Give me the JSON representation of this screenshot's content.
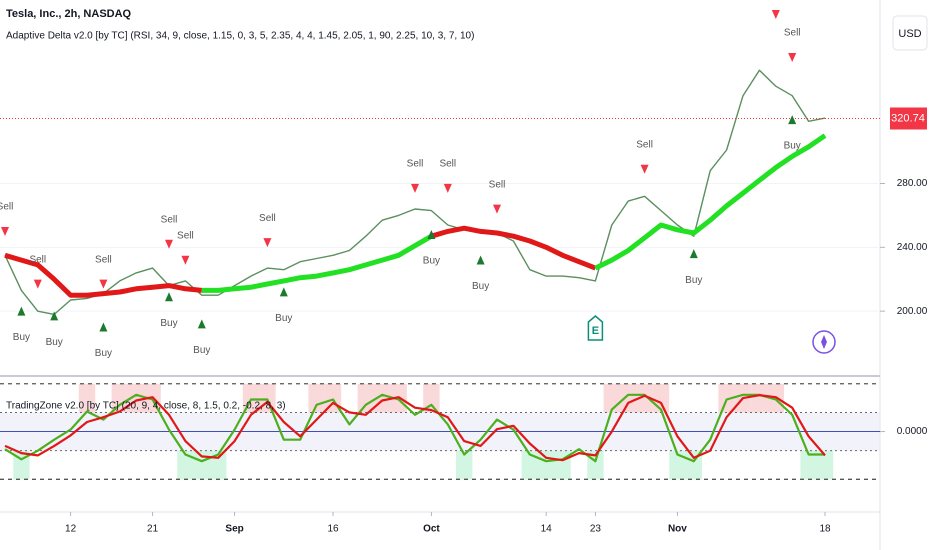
{
  "chart_data": [
    {
      "type": "line",
      "title": "Tesla, Inc., 2h, NASDAQ",
      "subtitle": "Adaptive Delta v2.0 [by TC] (RSI, 34, 9, close, 1.15, 0, 3, 5, 2.35, 4, 4, 1.45, 2.05, 1, 90, 2.25, 10, 3, 7, 10)",
      "unit": "USD",
      "ylim": [
        160,
        395
      ],
      "yticks": [
        {
          "value": 200,
          "label": "200.00"
        },
        {
          "value": 240,
          "label": "240.00"
        },
        {
          "value": 280,
          "label": "280.00"
        }
      ],
      "grid": true,
      "last_price": 320.74,
      "last_price_color": "#f23645",
      "series": [
        {
          "color": "#5b8f5e",
          "values": [
            235,
            213,
            200,
            198,
            207,
            208,
            211,
            219,
            224,
            227,
            216,
            219,
            210,
            210,
            216,
            222,
            227,
            226,
            231,
            233,
            235,
            238,
            247,
            257,
            260,
            264,
            263,
            254,
            251,
            249,
            249,
            244,
            226,
            222,
            222,
            221,
            219,
            254,
            269,
            272,
            263,
            254,
            247,
            288,
            301,
            335,
            351,
            341,
            335,
            319,
            321
          ]
        },
        {
          "color": "#e01818",
          "values": [
            235,
            232,
            229,
            220,
            210,
            210,
            211,
            212,
            214,
            215,
            216,
            214,
            213,
            null,
            null,
            null,
            null,
            null,
            null,
            null,
            null,
            null,
            null,
            null,
            null,
            null,
            247,
            250,
            252,
            250,
            249,
            247,
            244,
            240,
            235,
            231,
            227,
            null,
            null,
            null,
            null,
            null,
            null,
            null,
            null,
            null,
            null,
            null,
            null,
            null,
            null
          ]
        },
        {
          "color": "#22e022",
          "values": [
            null,
            null,
            null,
            null,
            null,
            null,
            null,
            null,
            null,
            null,
            null,
            null,
            213,
            213,
            214,
            215,
            217,
            219,
            221,
            222,
            224,
            226,
            229,
            232,
            235,
            241,
            247,
            null,
            null,
            null,
            null,
            null,
            null,
            null,
            null,
            null,
            227,
            232,
            238,
            246,
            254,
            251,
            249,
            257,
            266,
            274,
            282,
            290,
            297,
            303,
            310
          ]
        }
      ],
      "annotations": [
        {
          "text": "Sell",
          "x": 0,
          "y": 249
        },
        {
          "text": "Sell",
          "x": 2,
          "y": 216
        },
        {
          "text": "Sell",
          "x": 6,
          "y": 216
        },
        {
          "text": "Sell",
          "x": 10,
          "y": 241
        },
        {
          "text": "Sell",
          "x": 11,
          "y": 231
        },
        {
          "text": "Sell",
          "x": 16,
          "y": 242
        },
        {
          "text": "Sell",
          "x": 25,
          "y": 276
        },
        {
          "text": "Sell",
          "x": 27,
          "y": 276
        },
        {
          "text": "Sell",
          "x": 30,
          "y": 263
        },
        {
          "text": "Sell",
          "x": 39,
          "y": 288
        },
        {
          "text": "Sell",
          "x": 47,
          "y": 385
        },
        {
          "text": "Sell",
          "x": 48,
          "y": 358
        },
        {
          "text": "Buy",
          "x": 1,
          "y": 201
        },
        {
          "text": "Buy",
          "x": 3,
          "y": 198
        },
        {
          "text": "Buy",
          "x": 6,
          "y": 191
        },
        {
          "text": "Buy",
          "x": 10,
          "y": 210
        },
        {
          "text": "Buy",
          "x": 12,
          "y": 193
        },
        {
          "text": "Buy",
          "x": 17,
          "y": 213
        },
        {
          "text": "Buy",
          "x": 26,
          "y": 249
        },
        {
          "text": "Buy",
          "x": 29,
          "y": 233
        },
        {
          "text": "Buy",
          "x": 42,
          "y": 237
        },
        {
          "text": "Buy",
          "x": 48,
          "y": 321
        }
      ],
      "earnings": {
        "text": "E",
        "x": 36
      }
    },
    {
      "type": "line",
      "title": "TradingZone v2.0 [by TC] (20, 9, 4, close, 8, 1.5, 0.2, -0.2, 8, 3)",
      "categories": [
        null,
        null,
        null,
        null,
        "12",
        null,
        null,
        null,
        null,
        "21",
        null,
        null,
        null,
        null,
        "Sep",
        null,
        null,
        null,
        null,
        null,
        "16",
        null,
        null,
        null,
        null,
        null,
        "Oct",
        null,
        null,
        null,
        null,
        null,
        null,
        "14",
        null,
        null,
        "23",
        null,
        null,
        null,
        null,
        "Nov",
        null,
        null,
        null,
        null,
        null,
        null,
        null,
        null,
        "18"
      ],
      "ylim": [
        -1.6,
        1.1
      ],
      "yticks": [
        {
          "value": 0,
          "label": "0.0000"
        }
      ],
      "levels": [
        1,
        0.4,
        -0.4,
        -1
      ],
      "series": [
        {
          "color": "#4caf1e",
          "values": [
            -0.37,
            -0.58,
            -0.4,
            -0.17,
            0.04,
            0.42,
            0.25,
            0.56,
            0.77,
            0.67,
            0.04,
            -0.48,
            -0.62,
            -0.48,
            0.04,
            0.67,
            0.67,
            -0.17,
            -0.17,
            0.56,
            0.67,
            0.15,
            0.56,
            0.77,
            0.67,
            0.35,
            0.56,
            0.15,
            -0.48,
            -0.17,
            0.25,
            0.04,
            -0.48,
            -0.62,
            -0.58,
            -0.37,
            -0.62,
            0.46,
            0.77,
            0.77,
            0.46,
            -0.48,
            -0.62,
            -0.17,
            0.67,
            0.77,
            0.77,
            0.67,
            0.35,
            -0.48,
            -0.48
          ]
        },
        {
          "color": "#e01818",
          "values": [
            -0.3,
            -0.45,
            -0.5,
            -0.3,
            -0.08,
            0.2,
            0.3,
            0.42,
            0.65,
            0.72,
            0.35,
            -0.2,
            -0.52,
            -0.55,
            -0.2,
            0.35,
            0.62,
            0.2,
            -0.1,
            0.25,
            0.6,
            0.4,
            0.35,
            0.65,
            0.72,
            0.5,
            0.45,
            0.3,
            -0.2,
            -0.3,
            0.05,
            0.12,
            -0.25,
            -0.55,
            -0.6,
            -0.45,
            -0.5,
            0.0,
            0.6,
            0.75,
            0.6,
            -0.1,
            -0.55,
            -0.4,
            0.3,
            0.7,
            0.76,
            0.72,
            0.5,
            -0.1,
            -0.5
          ]
        }
      ]
    }
  ]
}
